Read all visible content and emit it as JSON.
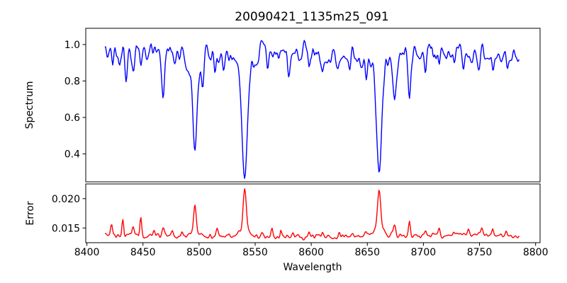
{
  "figure": {
    "background_color": "#ffffff",
    "spine_color": "#000000",
    "text_color": "#000000"
  },
  "chart_data": {
    "type": "line",
    "title": "20090421_1135m25_091",
    "xlabel": "Wavelength",
    "grid": false,
    "legend": "none",
    "xlim": [
      8399,
      8804
    ],
    "xticks": [
      8400,
      8450,
      8500,
      8550,
      8600,
      8650,
      8700,
      8750,
      8800
    ],
    "xtick_labels": [
      "8400",
      "8450",
      "8500",
      "8550",
      "8600",
      "8650",
      "8700",
      "8750",
      "8800"
    ],
    "x_range": [
      8416,
      8786
    ],
    "x_step": 0.7,
    "panels": [
      {
        "name": "spectrum",
        "ylabel": "Spectrum",
        "line_color": "#0000ff",
        "ylim": [
          0.247,
          1.089
        ],
        "ytick_values": [
          0.4,
          0.6,
          0.8,
          1.0
        ],
        "ytick_labels": [
          "0.4",
          "0.6",
          "0.8",
          "1.0"
        ],
        "continuum": 0.96,
        "noise_amp": 0.05,
        "absorption_lines": [
          {
            "center": 8423.0,
            "depth": 0.1,
            "sigma": 1.0
          },
          {
            "center": 8429.5,
            "depth": 0.07,
            "sigma": 0.9
          },
          {
            "center": 8435.0,
            "depth": 0.19,
            "sigma": 1.1
          },
          {
            "center": 8441.5,
            "depth": 0.17,
            "sigma": 1.3
          },
          {
            "center": 8448.0,
            "depth": 0.06,
            "sigma": 0.9
          },
          {
            "center": 8455.0,
            "depth": 0.05,
            "sigma": 0.9
          },
          {
            "center": 8468.0,
            "depth": 0.26,
            "sigma": 1.4
          },
          {
            "center": 8478.0,
            "depth": 0.07,
            "sigma": 1.0
          },
          {
            "center": 8490.0,
            "depth": 0.05,
            "sigma": 0.9
          },
          {
            "center": 8496.3,
            "depth": 0.53,
            "sigma": 1.9
          },
          {
            "center": 8503.5,
            "depth": 0.16,
            "sigma": 1.1
          },
          {
            "center": 8514.0,
            "depth": 0.1,
            "sigma": 1.0
          },
          {
            "center": 8522.0,
            "depth": 0.07,
            "sigma": 0.9
          },
          {
            "center": 8540.7,
            "depth": 0.695,
            "sigma": 2.3
          },
          {
            "center": 8552.0,
            "depth": 0.06,
            "sigma": 0.9
          },
          {
            "center": 8561.0,
            "depth": 0.08,
            "sigma": 1.0
          },
          {
            "center": 8571.0,
            "depth": 0.06,
            "sigma": 0.9
          },
          {
            "center": 8580.0,
            "depth": 0.1,
            "sigma": 1.1
          },
          {
            "center": 8589.0,
            "depth": 0.06,
            "sigma": 0.9
          },
          {
            "center": 8598.0,
            "depth": 0.09,
            "sigma": 1.0
          },
          {
            "center": 8610.0,
            "depth": 0.07,
            "sigma": 1.0
          },
          {
            "center": 8624.0,
            "depth": 0.08,
            "sigma": 1.0
          },
          {
            "center": 8634.0,
            "depth": 0.05,
            "sigma": 0.9
          },
          {
            "center": 8649.0,
            "depth": 0.09,
            "sigma": 1.1
          },
          {
            "center": 8660.5,
            "depth": 0.65,
            "sigma": 2.2
          },
          {
            "center": 8674.5,
            "depth": 0.26,
            "sigma": 1.4
          },
          {
            "center": 8687.5,
            "depth": 0.27,
            "sigma": 1.2
          },
          {
            "center": 8702.0,
            "depth": 0.1,
            "sigma": 1.0
          },
          {
            "center": 8714.0,
            "depth": 0.09,
            "sigma": 1.0
          },
          {
            "center": 8725.0,
            "depth": 0.07,
            "sigma": 0.9
          },
          {
            "center": 8736.0,
            "depth": 0.1,
            "sigma": 1.0
          },
          {
            "center": 8749.0,
            "depth": 0.08,
            "sigma": 0.9
          },
          {
            "center": 8762.0,
            "depth": 0.11,
            "sigma": 1.0
          },
          {
            "center": 8775.0,
            "depth": 0.08,
            "sigma": 0.9
          }
        ]
      },
      {
        "name": "error",
        "ylabel": "Error",
        "line_color": "#ff0000",
        "ylim": [
          0.0125,
          0.0225
        ],
        "ytick_values": [
          0.015,
          0.02
        ],
        "ytick_labels": [
          "0.015",
          "0.020"
        ],
        "baseline": 0.0136,
        "noise_amp": 0.0004,
        "peaks": [
          {
            "center": 8422.0,
            "height": 0.0018,
            "sigma": 0.8
          },
          {
            "center": 8432.0,
            "height": 0.0028,
            "sigma": 0.8
          },
          {
            "center": 8441.0,
            "height": 0.0014,
            "sigma": 0.8
          },
          {
            "center": 8448.0,
            "height": 0.0032,
            "sigma": 0.8
          },
          {
            "center": 8460.0,
            "height": 0.0009,
            "sigma": 0.8
          },
          {
            "center": 8468.0,
            "height": 0.0014,
            "sigma": 0.9
          },
          {
            "center": 8476.0,
            "height": 0.0008,
            "sigma": 0.8
          },
          {
            "center": 8485.0,
            "height": 0.0009,
            "sigma": 0.8
          },
          {
            "center": 8496.3,
            "height": 0.0055,
            "sigma": 1.1
          },
          {
            "center": 8510.0,
            "height": 0.0009,
            "sigma": 0.8
          },
          {
            "center": 8516.0,
            "height": 0.0011,
            "sigma": 0.8
          },
          {
            "center": 8527.0,
            "height": 0.0008,
            "sigma": 0.8
          },
          {
            "center": 8540.7,
            "height": 0.0083,
            "sigma": 1.4
          },
          {
            "center": 8556.0,
            "height": 0.001,
            "sigma": 0.8
          },
          {
            "center": 8565.0,
            "height": 0.0016,
            "sigma": 0.8
          },
          {
            "center": 8573.0,
            "height": 0.0014,
            "sigma": 0.8
          },
          {
            "center": 8584.0,
            "height": 0.0008,
            "sigma": 0.8
          },
          {
            "center": 8598.0,
            "height": 0.0008,
            "sigma": 0.8
          },
          {
            "center": 8610.0,
            "height": 0.0007,
            "sigma": 0.8
          },
          {
            "center": 8625.0,
            "height": 0.0008,
            "sigma": 0.8
          },
          {
            "center": 8637.0,
            "height": 0.0007,
            "sigma": 0.8
          },
          {
            "center": 8649.0,
            "height": 0.0009,
            "sigma": 0.8
          },
          {
            "center": 8660.5,
            "height": 0.0076,
            "sigma": 1.4
          },
          {
            "center": 8674.5,
            "height": 0.0016,
            "sigma": 0.9
          },
          {
            "center": 8687.5,
            "height": 0.0024,
            "sigma": 0.8
          },
          {
            "center": 8702.0,
            "height": 0.0008,
            "sigma": 0.8
          },
          {
            "center": 8714.0,
            "height": 0.0011,
            "sigma": 0.8
          },
          {
            "center": 8727.0,
            "height": 0.0008,
            "sigma": 0.8
          },
          {
            "center": 8740.0,
            "height": 0.0011,
            "sigma": 0.8
          },
          {
            "center": 8752.0,
            "height": 0.0008,
            "sigma": 0.8
          },
          {
            "center": 8762.0,
            "height": 0.001,
            "sigma": 0.8
          },
          {
            "center": 8774.0,
            "height": 0.0008,
            "sigma": 0.8
          }
        ]
      }
    ]
  }
}
